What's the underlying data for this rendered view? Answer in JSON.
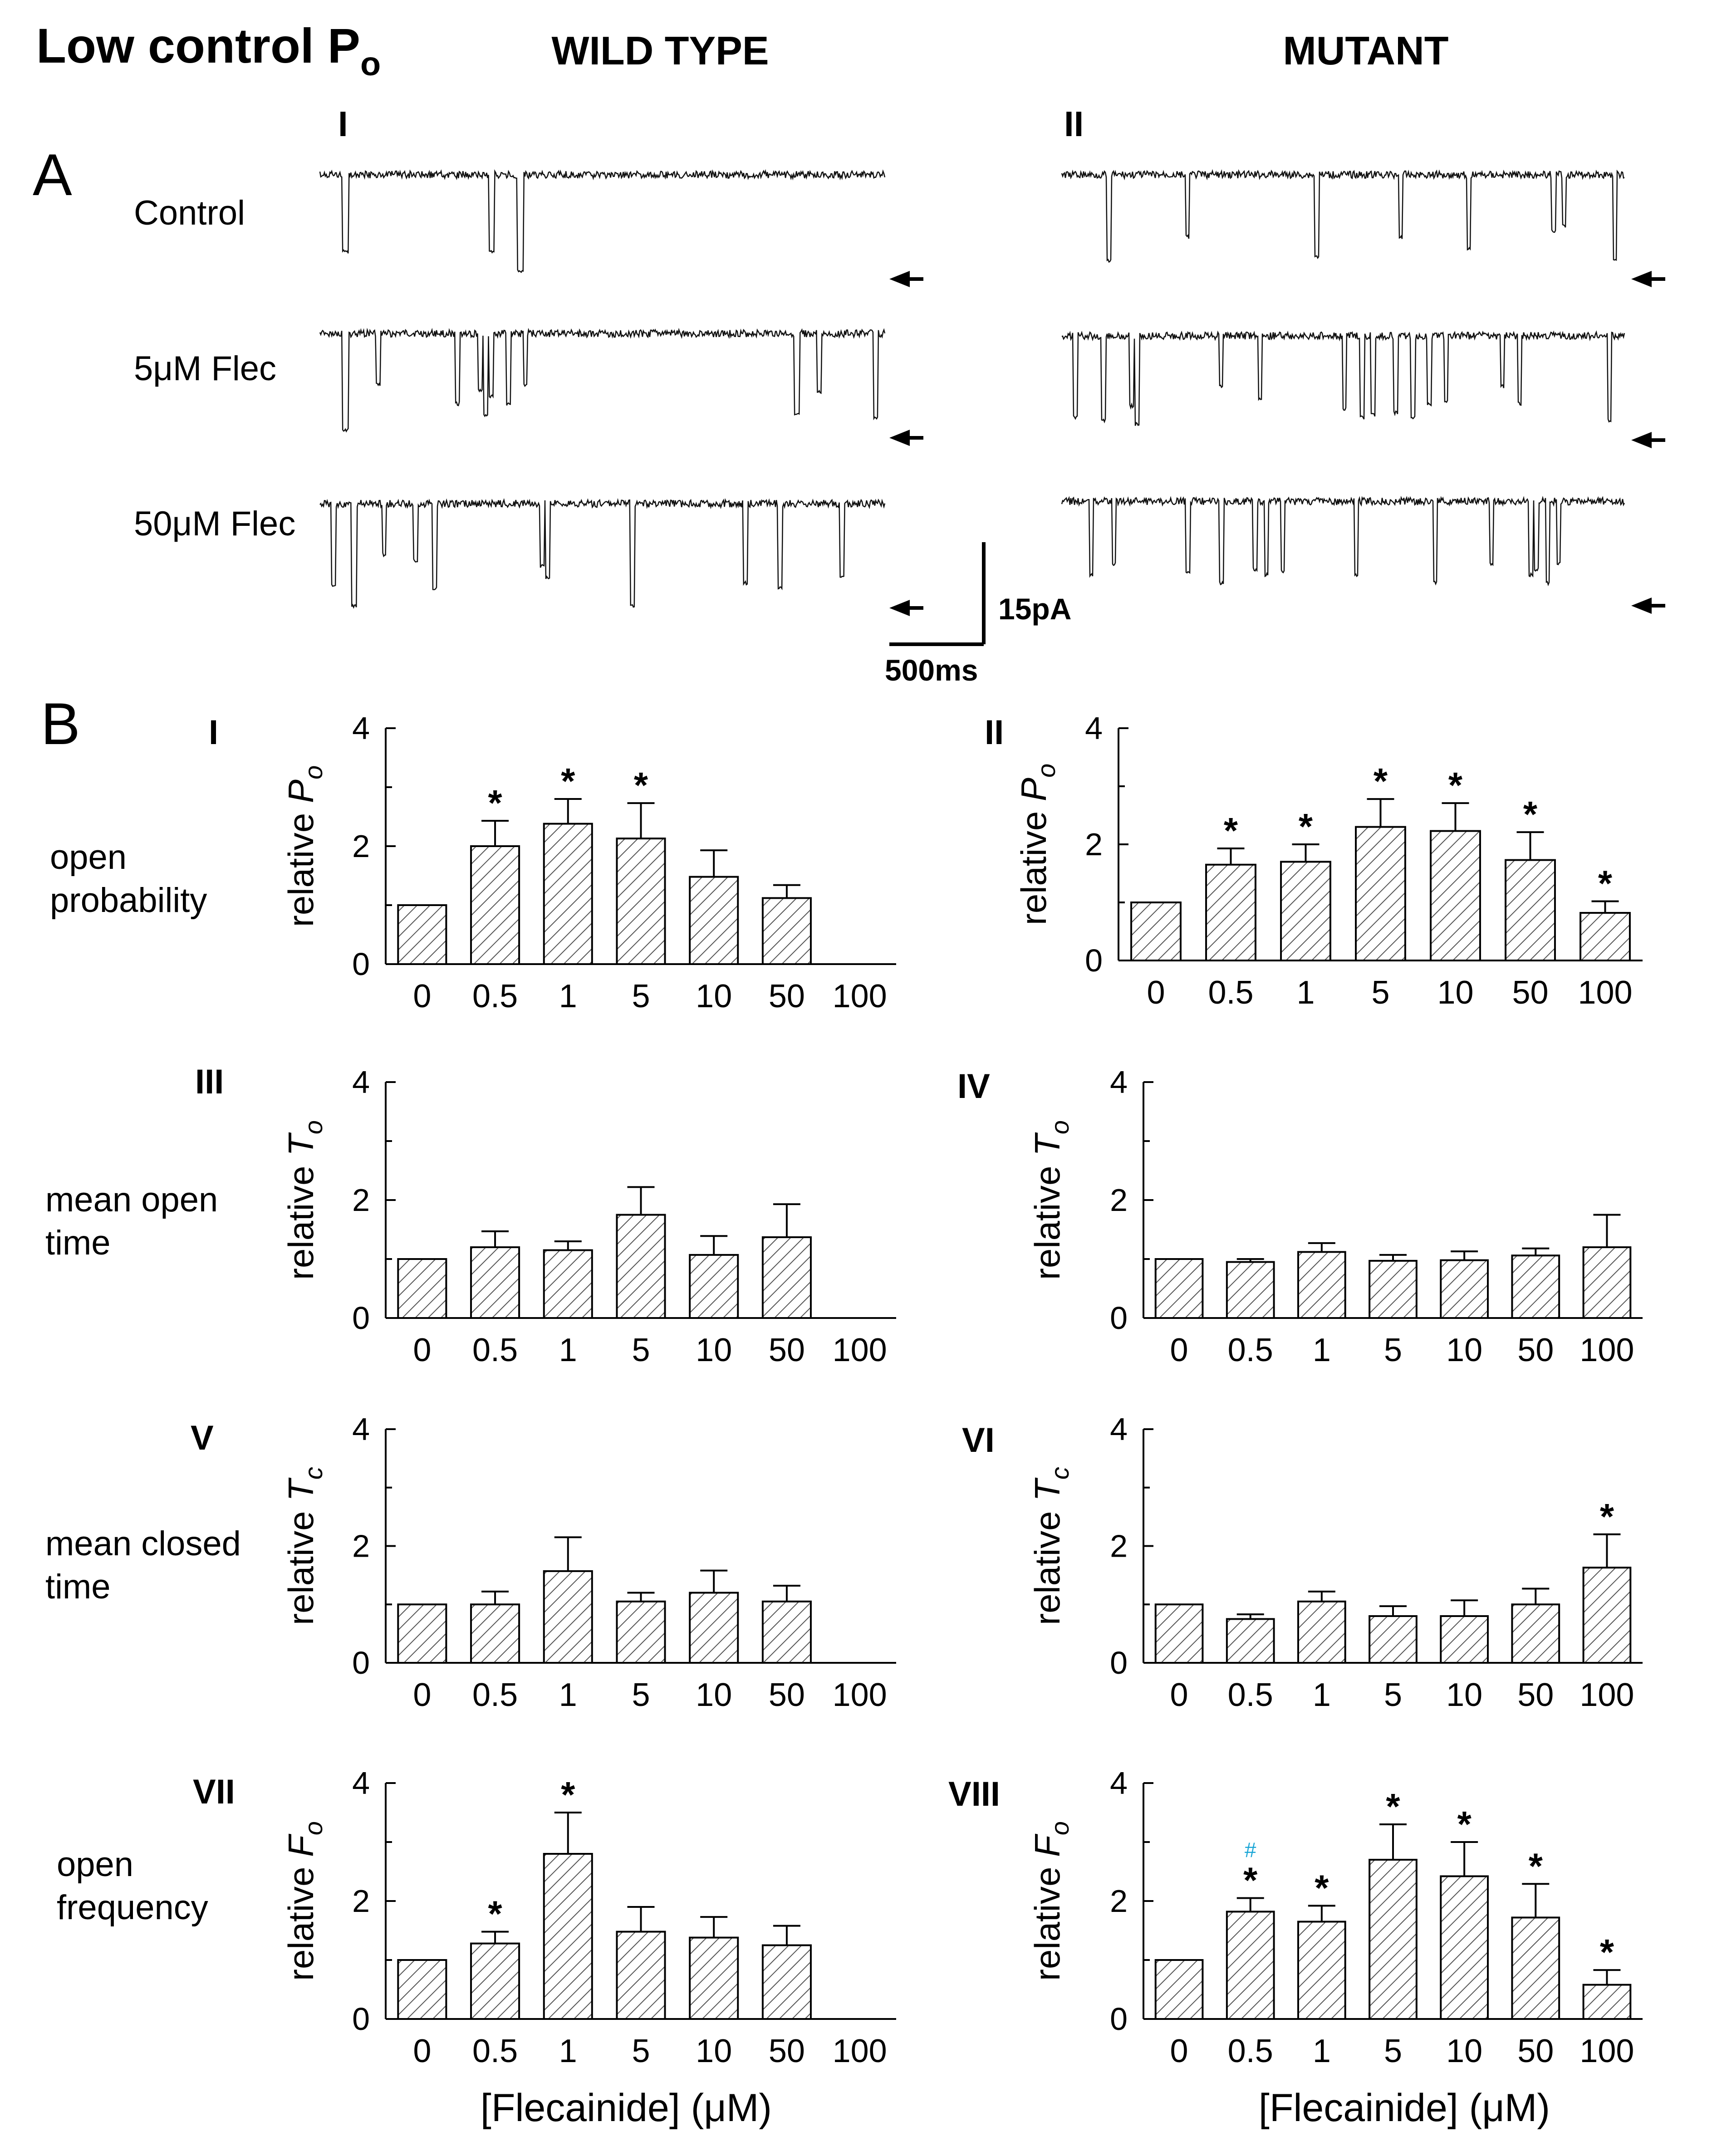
{
  "figure": {
    "title_main": "Low control P",
    "title_sub": "o",
    "col_wt": "WILD TYPE",
    "col_mut": "MUTANT",
    "panel_a": "A",
    "panel_b": "B",
    "trace_roman": [
      "I",
      "II"
    ],
    "trace_rows": [
      "Control",
      "5μM  Flec",
      "50μM Flec"
    ],
    "scale_current": "15pA",
    "scale_time": "500ms",
    "row_labels": [
      [
        "open",
        "probability"
      ],
      [
        "mean open",
        "time"
      ],
      [
        "mean closed",
        "time"
      ],
      [
        "open",
        "frequency"
      ]
    ],
    "xlabel": "[Flecainide] (μM)",
    "hash_mark": "#",
    "hash_color": "#1aa6d6"
  },
  "chart_data": [
    {
      "type": "bar",
      "id": "I",
      "roman": "I",
      "ylabel_prefix": "relative",
      "ylabel_symbol": "P",
      "ylabel_sub": "o",
      "categories": [
        "0",
        "0.5",
        "1",
        "5",
        "10",
        "50",
        "100"
      ],
      "values": [
        1.0,
        2.0,
        2.38,
        2.13,
        1.48,
        1.12,
        null
      ],
      "errors": [
        0,
        0.43,
        0.42,
        0.6,
        0.45,
        0.22,
        null
      ],
      "significant": [
        false,
        true,
        true,
        true,
        false,
        false,
        false
      ],
      "yticks": [
        "0",
        "2",
        "4"
      ],
      "ylim": [
        0,
        4
      ]
    },
    {
      "type": "bar",
      "id": "II",
      "roman": "II",
      "ylabel_prefix": "relative",
      "ylabel_symbol": "P",
      "ylabel_sub": "o",
      "categories": [
        "0",
        "0.5",
        "1",
        "5",
        "10",
        "50",
        "100"
      ],
      "values": [
        1.0,
        1.65,
        1.7,
        2.3,
        2.23,
        1.73,
        0.82
      ],
      "errors": [
        0,
        0.28,
        0.3,
        0.48,
        0.48,
        0.48,
        0.2
      ],
      "significant": [
        false,
        true,
        true,
        true,
        true,
        true,
        true
      ],
      "yticks": [
        "0",
        "2",
        "4"
      ],
      "ylim": [
        0,
        4
      ]
    },
    {
      "type": "bar",
      "id": "III",
      "roman": "III",
      "ylabel_prefix": "relative",
      "ylabel_symbol": "T",
      "ylabel_sub": "o",
      "categories": [
        "0",
        "0.5",
        "1",
        "5",
        "10",
        "50",
        "100"
      ],
      "values": [
        1.0,
        1.2,
        1.15,
        1.75,
        1.07,
        1.37,
        null
      ],
      "errors": [
        0,
        0.27,
        0.15,
        0.47,
        0.32,
        0.56,
        null
      ],
      "significant": [
        false,
        false,
        false,
        false,
        false,
        false,
        false
      ],
      "yticks": [
        "0",
        "2",
        "4"
      ],
      "ylim": [
        0,
        4
      ]
    },
    {
      "type": "bar",
      "id": "IV",
      "roman": "IV",
      "ylabel_prefix": "relative",
      "ylabel_symbol": "T",
      "ylabel_sub": "o",
      "categories": [
        "0",
        "0.5",
        "1",
        "5",
        "10",
        "50",
        "100"
      ],
      "values": [
        1.0,
        0.95,
        1.12,
        0.97,
        0.98,
        1.06,
        1.2
      ],
      "errors": [
        0,
        0.05,
        0.15,
        0.1,
        0.15,
        0.12,
        0.55
      ],
      "significant": [
        false,
        false,
        false,
        false,
        false,
        false,
        false
      ],
      "yticks": [
        "0",
        "2",
        "4"
      ],
      "ylim": [
        0,
        4
      ]
    },
    {
      "type": "bar",
      "id": "V",
      "roman": "V",
      "ylabel_prefix": "relative",
      "ylabel_symbol": "T",
      "ylabel_sub": "c",
      "categories": [
        "0",
        "0.5",
        "1",
        "5",
        "10",
        "50",
        "100"
      ],
      "values": [
        1.0,
        1.0,
        1.57,
        1.05,
        1.2,
        1.05,
        null
      ],
      "errors": [
        0,
        0.22,
        0.58,
        0.15,
        0.38,
        0.27,
        null
      ],
      "significant": [
        false,
        false,
        false,
        false,
        false,
        false,
        false
      ],
      "yticks": [
        "0",
        "2",
        "4"
      ],
      "ylim": [
        0,
        4
      ]
    },
    {
      "type": "bar",
      "id": "VI",
      "roman": "VI",
      "ylabel_prefix": "relative",
      "ylabel_symbol": "T",
      "ylabel_sub": "c",
      "categories": [
        "0",
        "0.5",
        "1",
        "5",
        "10",
        "50",
        "100"
      ],
      "values": [
        1.0,
        0.75,
        1.05,
        0.8,
        0.8,
        1.0,
        1.63
      ],
      "errors": [
        0,
        0.08,
        0.17,
        0.17,
        0.27,
        0.27,
        0.57
      ],
      "significant": [
        false,
        false,
        false,
        false,
        false,
        false,
        true
      ],
      "yticks": [
        "0",
        "2",
        "4"
      ],
      "ylim": [
        0,
        4
      ]
    },
    {
      "type": "bar",
      "id": "VII",
      "roman": "VII",
      "ylabel_prefix": "relative",
      "ylabel_symbol": "F",
      "ylabel_sub": "o",
      "categories": [
        "0",
        "0.5",
        "1",
        "5",
        "10",
        "50",
        "100"
      ],
      "values": [
        1.0,
        1.28,
        2.8,
        1.48,
        1.38,
        1.25,
        null
      ],
      "errors": [
        0,
        0.2,
        0.7,
        0.42,
        0.35,
        0.33,
        null
      ],
      "significant": [
        false,
        true,
        true,
        false,
        false,
        false,
        false
      ],
      "yticks": [
        "0",
        "2",
        "4"
      ],
      "ylim": [
        0,
        4
      ]
    },
    {
      "type": "bar",
      "id": "VIII",
      "roman": "VIII",
      "ylabel_prefix": "relative",
      "ylabel_symbol": "F",
      "ylabel_sub": "o",
      "categories": [
        "0",
        "0.5",
        "1",
        "5",
        "10",
        "50",
        "100"
      ],
      "values": [
        1.0,
        1.82,
        1.65,
        2.7,
        2.42,
        1.72,
        0.58
      ],
      "errors": [
        0,
        0.23,
        0.27,
        0.6,
        0.58,
        0.57,
        0.25
      ],
      "significant": [
        false,
        true,
        true,
        true,
        true,
        true,
        true
      ],
      "hash": [
        false,
        true,
        false,
        false,
        false,
        false,
        false
      ],
      "yticks": [
        "0",
        "2",
        "4"
      ],
      "ylim": [
        0,
        4
      ]
    }
  ],
  "trace_events": {
    "wt": [
      [
        [
          0.04,
          0.68,
          0.05
        ],
        [
          0.3,
          0.68,
          0.04
        ],
        [
          0.35,
          0.85,
          0.05
        ]
      ],
      [
        [
          0.04,
          0.85,
          0.06
        ],
        [
          0.1,
          0.45,
          0.03
        ],
        [
          0.24,
          0.62,
          0.03
        ],
        [
          0.28,
          0.5,
          0.03
        ],
        [
          0.29,
          0.72,
          0.03
        ],
        [
          0.3,
          0.55,
          0.03
        ],
        [
          0.33,
          0.62,
          0.03
        ],
        [
          0.36,
          0.45,
          0.03
        ],
        [
          0.84,
          0.72,
          0.04
        ],
        [
          0.88,
          0.52,
          0.03
        ],
        [
          0.98,
          0.75,
          0.03
        ]
      ],
      [
        [
          0.02,
          0.72,
          0.04
        ],
        [
          0.055,
          0.9,
          0.05
        ],
        [
          0.11,
          0.45,
          0.03
        ],
        [
          0.165,
          0.5,
          0.03
        ],
        [
          0.2,
          0.75,
          0.03
        ],
        [
          0.39,
          0.55,
          0.03
        ],
        [
          0.4,
          0.65,
          0.03
        ],
        [
          0.55,
          0.9,
          0.03
        ],
        [
          0.75,
          0.7,
          0.03
        ],
        [
          0.81,
          0.75,
          0.04
        ],
        [
          0.92,
          0.65,
          0.03
        ]
      ]
    ],
    "mut": [
      [
        [
          0.08,
          0.76,
          0.03
        ],
        [
          0.22,
          0.55,
          0.02
        ],
        [
          0.45,
          0.72,
          0.03
        ],
        [
          0.6,
          0.55,
          0.02
        ],
        [
          0.72,
          0.66,
          0.02
        ],
        [
          0.87,
          0.5,
          0.03
        ],
        [
          0.89,
          0.45,
          0.02
        ],
        [
          0.98,
          0.76,
          0.02
        ]
      ],
      [
        [
          0.02,
          0.72,
          0.03
        ],
        [
          0.07,
          0.75,
          0.04
        ],
        [
          0.12,
          0.62,
          0.03
        ],
        [
          0.13,
          0.78,
          0.03
        ],
        [
          0.28,
          0.45,
          0.02
        ],
        [
          0.35,
          0.55,
          0.02
        ],
        [
          0.5,
          0.65,
          0.02
        ],
        [
          0.53,
          0.72,
          0.03
        ],
        [
          0.55,
          0.7,
          0.03
        ],
        [
          0.59,
          0.68,
          0.03
        ],
        [
          0.62,
          0.72,
          0.03
        ],
        [
          0.65,
          0.6,
          0.03
        ],
        [
          0.68,
          0.58,
          0.02
        ],
        [
          0.78,
          0.45,
          0.02
        ],
        [
          0.81,
          0.6,
          0.02
        ],
        [
          0.97,
          0.75,
          0.02
        ]
      ],
      [
        [
          0.05,
          0.65,
          0.02
        ],
        [
          0.09,
          0.55,
          0.02
        ],
        [
          0.22,
          0.62,
          0.03
        ],
        [
          0.28,
          0.72,
          0.03
        ],
        [
          0.34,
          0.6,
          0.03
        ],
        [
          0.36,
          0.65,
          0.03
        ],
        [
          0.39,
          0.62,
          0.02
        ],
        [
          0.52,
          0.65,
          0.02
        ],
        [
          0.66,
          0.72,
          0.03
        ],
        [
          0.76,
          0.55,
          0.02
        ],
        [
          0.83,
          0.65,
          0.03
        ],
        [
          0.84,
          0.6,
          0.03
        ],
        [
          0.86,
          0.72,
          0.03
        ],
        [
          0.88,
          0.55,
          0.02
        ]
      ]
    ]
  }
}
